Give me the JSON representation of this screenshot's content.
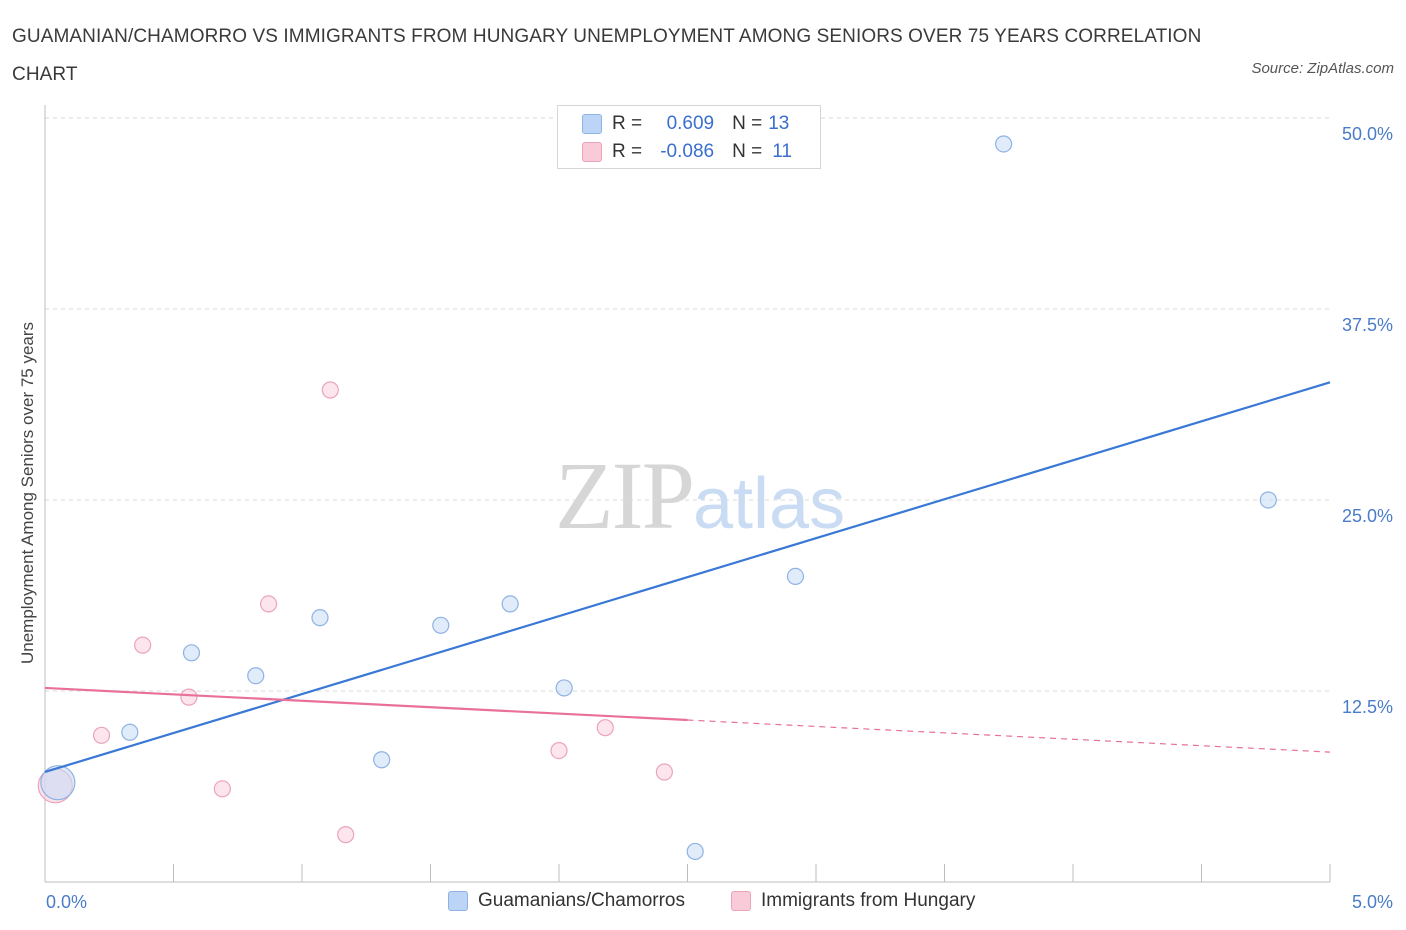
{
  "title": "GUAMANIAN/CHAMORRO VS IMMIGRANTS FROM HUNGARY UNEMPLOYMENT AMONG SENIORS OVER 75 YEARS CORRELATION CHART",
  "source": "Source: ZipAtlas.com",
  "watermark": {
    "zip": "ZIP",
    "atlas": "atlas"
  },
  "legend": {
    "rows": [
      {
        "r_label": "R =",
        "r_value": "0.609",
        "n_label": "N =",
        "n_value": "13"
      },
      {
        "r_label": "R =",
        "r_value": "-0.086",
        "n_label": "N =",
        "n_value": "11"
      }
    ]
  },
  "colors": {
    "blue": "#3a78d6",
    "blue_fill": "#c9dcf5",
    "pink": "#e8709a",
    "pink_fill": "#f9cfdc"
  },
  "chart_data": {
    "type": "scatter",
    "title": "GUAMANIAN/CHAMORRO VS IMMIGRANTS FROM HUNGARY UNEMPLOYMENT AMONG SENIORS OVER 75 YEARS CORRELATION CHART",
    "xlabel": "",
    "ylabel": "Unemployment Among Seniors over 75 years",
    "xlim": [
      0,
      5
    ],
    "ylim": [
      0,
      50
    ],
    "x_tick_labels": [
      "0.0%",
      "5.0%"
    ],
    "y_ticks": [
      12.5,
      25.0,
      37.5,
      50.0
    ],
    "y_tick_labels": [
      "12.5%",
      "25.0%",
      "37.5%",
      "50.0%"
    ],
    "series": [
      {
        "name": "Guamanians/Chamorros",
        "color": "#3a78d6",
        "points": [
          {
            "x": 0.05,
            "y": 6.5,
            "big": true
          },
          {
            "x": 0.33,
            "y": 9.8
          },
          {
            "x": 0.57,
            "y": 15.0
          },
          {
            "x": 0.82,
            "y": 13.5
          },
          {
            "x": 1.07,
            "y": 17.3
          },
          {
            "x": 1.31,
            "y": 8.0
          },
          {
            "x": 1.54,
            "y": 16.8
          },
          {
            "x": 1.81,
            "y": 18.2
          },
          {
            "x": 2.02,
            "y": 12.7
          },
          {
            "x": 2.53,
            "y": 2.0
          },
          {
            "x": 2.92,
            "y": 20.0
          },
          {
            "x": 3.73,
            "y": 48.3
          },
          {
            "x": 4.76,
            "y": 25.0
          }
        ],
        "trend": {
          "x0": 0.0,
          "y0": 7.2,
          "x1": 5.0,
          "y1": 32.7,
          "dashed_from": null
        }
      },
      {
        "name": "Immigrants from Hungary",
        "color": "#e8709a",
        "points": [
          {
            "x": 0.04,
            "y": 6.3,
            "big": true
          },
          {
            "x": 0.22,
            "y": 9.6
          },
          {
            "x": 0.38,
            "y": 15.5
          },
          {
            "x": 0.56,
            "y": 12.1
          },
          {
            "x": 0.69,
            "y": 6.1
          },
          {
            "x": 0.87,
            "y": 18.2
          },
          {
            "x": 1.11,
            "y": 32.2
          },
          {
            "x": 1.17,
            "y": 3.1
          },
          {
            "x": 2.0,
            "y": 8.6
          },
          {
            "x": 2.18,
            "y": 10.1
          },
          {
            "x": 2.41,
            "y": 7.2
          }
        ],
        "trend": {
          "x0": 0.0,
          "y0": 12.7,
          "x1": 5.0,
          "y1": 8.5,
          "dashed_from": 2.5
        }
      }
    ]
  }
}
